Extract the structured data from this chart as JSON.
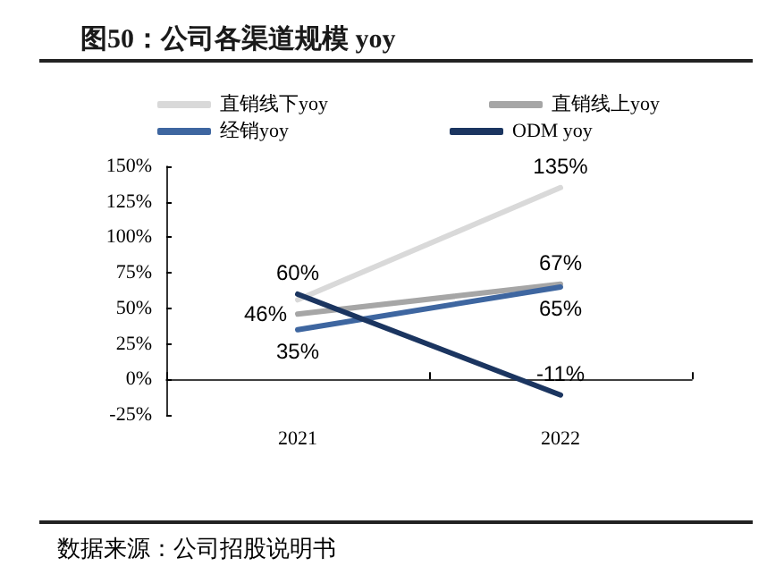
{
  "chart_data": {
    "type": "line",
    "title": "图50：公司各渠道规模 yoy",
    "annotations": [
      "数据来源：公司招股说明书"
    ],
    "categories": [
      "2021",
      "2022"
    ],
    "series": [
      {
        "name": "直销线下yoy",
        "color": "#d9d9d9",
        "values": [
          56,
          135
        ],
        "value_labels": [
          null,
          "135%"
        ]
      },
      {
        "name": "直销线上yoy",
        "color": "#a6a6a6",
        "values": [
          46,
          67
        ],
        "value_labels": [
          "46%",
          "67%"
        ]
      },
      {
        "name": "经销yoy",
        "color": "#3e66a0",
        "values": [
          35,
          65
        ],
        "value_labels": [
          "35%",
          "65%"
        ]
      },
      {
        "name": "ODM yoy",
        "color": "#1b3560",
        "values": [
          60,
          -11
        ],
        "value_labels": [
          "60%",
          "-11%"
        ]
      }
    ],
    "ylim": [
      -25,
      150
    ],
    "yticks": [
      {
        "value": -25,
        "label": "-25%"
      },
      {
        "value": 0,
        "label": "0%"
      },
      {
        "value": 25,
        "label": "25%"
      },
      {
        "value": 50,
        "label": "50%"
      },
      {
        "value": 75,
        "label": "75%"
      },
      {
        "value": 100,
        "label": "100%"
      },
      {
        "value": 125,
        "label": "125%"
      },
      {
        "value": 150,
        "label": "150%"
      }
    ],
    "grid": false,
    "legend": "top",
    "marker": "none",
    "line_style": "solid"
  }
}
